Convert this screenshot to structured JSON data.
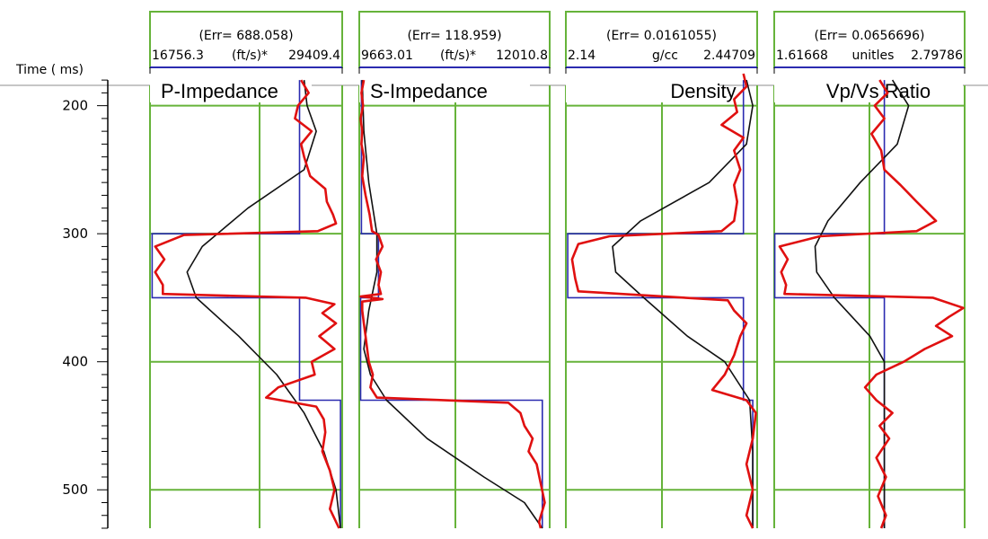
{
  "chart_data": {
    "type": "line",
    "y_axis": {
      "label": "Time ( ms)",
      "range": [
        175,
        530
      ],
      "ticks": [
        200,
        300,
        400,
        500
      ],
      "tick_labels": [
        "200",
        "300",
        "400",
        "500"
      ],
      "inverted": true
    },
    "grid": true,
    "colors": {
      "grid": "#66b33a",
      "model": "#2b2bb0",
      "inverted": "#e01010",
      "initial": "#111111"
    },
    "tracks": [
      {
        "title": "P-Impedance",
        "err": "(Err= 688.058)",
        "range_min": "16756.3",
        "unit": "(ft/s)*",
        "range_max": "29409.4",
        "xlim": [
          16756.3,
          29409.4
        ],
        "model": [
          [
            180,
            26600
          ],
          [
            300,
            26600
          ],
          [
            300,
            16900
          ],
          [
            350,
            16900
          ],
          [
            350,
            26600
          ],
          [
            430,
            26600
          ],
          [
            430,
            29300
          ],
          [
            530,
            29300
          ]
        ],
        "initial": [
          [
            180,
            26900
          ],
          [
            200,
            27100
          ],
          [
            220,
            27700
          ],
          [
            250,
            26900
          ],
          [
            280,
            23200
          ],
          [
            310,
            20200
          ],
          [
            330,
            19200
          ],
          [
            350,
            19800
          ],
          [
            380,
            22600
          ],
          [
            410,
            25100
          ],
          [
            440,
            26900
          ],
          [
            470,
            28200
          ],
          [
            500,
            29000
          ],
          [
            530,
            29300
          ]
        ],
        "inverted": [
          [
            180,
            26700
          ],
          [
            190,
            27200
          ],
          [
            200,
            26500
          ],
          [
            210,
            26300
          ],
          [
            220,
            27400
          ],
          [
            230,
            26700
          ],
          [
            240,
            26900
          ],
          [
            255,
            27300
          ],
          [
            265,
            28300
          ],
          [
            275,
            28400
          ],
          [
            285,
            28800
          ],
          [
            292,
            29000
          ],
          [
            298,
            27800
          ],
          [
            301,
            19000
          ],
          [
            310,
            17100
          ],
          [
            320,
            17700
          ],
          [
            330,
            17100
          ],
          [
            340,
            17600
          ],
          [
            347,
            17600
          ],
          [
            350,
            27000
          ],
          [
            355,
            28900
          ],
          [
            362,
            28100
          ],
          [
            370,
            29000
          ],
          [
            380,
            27900
          ],
          [
            390,
            28900
          ],
          [
            400,
            27400
          ],
          [
            410,
            27600
          ],
          [
            420,
            25200
          ],
          [
            428,
            24400
          ],
          [
            435,
            27700
          ],
          [
            445,
            28200
          ],
          [
            455,
            28300
          ],
          [
            470,
            28100
          ],
          [
            485,
            28600
          ],
          [
            500,
            28900
          ],
          [
            515,
            28600
          ],
          [
            530,
            29200
          ]
        ]
      },
      {
        "title": "S-Impedance",
        "err": "(Err= 118.959)",
        "range_min": "9663.01",
        "unit": "(ft/s)*",
        "range_max": "12010.8",
        "xlim": [
          9663.01,
          12010.8
        ],
        "model": [
          [
            180,
            9690
          ],
          [
            300,
            9690
          ],
          [
            300,
            9900
          ],
          [
            350,
            9900
          ],
          [
            350,
            9680
          ],
          [
            430,
            9680
          ],
          [
            430,
            11920
          ],
          [
            530,
            11920
          ]
        ],
        "initial": [
          [
            180,
            9700
          ],
          [
            220,
            9720
          ],
          [
            260,
            9780
          ],
          [
            300,
            9880
          ],
          [
            330,
            9880
          ],
          [
            360,
            9780
          ],
          [
            390,
            9720
          ],
          [
            410,
            9800
          ],
          [
            430,
            10000
          ],
          [
            460,
            10500
          ],
          [
            490,
            11200
          ],
          [
            510,
            11700
          ],
          [
            530,
            11920
          ]
        ],
        "inverted": [
          [
            180,
            9720
          ],
          [
            190,
            9690
          ],
          [
            200,
            9710
          ],
          [
            210,
            9680
          ],
          [
            220,
            9700
          ],
          [
            230,
            9690
          ],
          [
            240,
            9720
          ],
          [
            255,
            9700
          ],
          [
            270,
            9740
          ],
          [
            285,
            9790
          ],
          [
            298,
            9820
          ],
          [
            301,
            9900
          ],
          [
            310,
            9950
          ],
          [
            320,
            9870
          ],
          [
            330,
            9930
          ],
          [
            340,
            9900
          ],
          [
            347,
            9930
          ],
          [
            349,
            9680
          ],
          [
            351,
            9950
          ],
          [
            353,
            9700
          ],
          [
            360,
            9700
          ],
          [
            370,
            9720
          ],
          [
            380,
            9740
          ],
          [
            390,
            9760
          ],
          [
            400,
            9780
          ],
          [
            410,
            9830
          ],
          [
            420,
            9800
          ],
          [
            428,
            9880
          ],
          [
            432,
            11500
          ],
          [
            440,
            11650
          ],
          [
            450,
            11700
          ],
          [
            460,
            11800
          ],
          [
            470,
            11750
          ],
          [
            480,
            11850
          ],
          [
            495,
            11900
          ],
          [
            510,
            11950
          ],
          [
            525,
            11880
          ],
          [
            530,
            11900
          ]
        ]
      },
      {
        "title": "Density",
        "err": "(Err= 0.0161055)",
        "range_min": "2.14",
        "unit": "g/cc",
        "range_max": "2.44709",
        "xlim": [
          2.14,
          2.44709
        ],
        "model": [
          [
            180,
            2.425
          ],
          [
            300,
            2.425
          ],
          [
            300,
            2.143
          ],
          [
            350,
            2.143
          ],
          [
            350,
            2.425
          ],
          [
            430,
            2.425
          ],
          [
            430,
            2.44
          ],
          [
            530,
            2.44
          ]
        ],
        "initial": [
          [
            180,
            2.43
          ],
          [
            200,
            2.44
          ],
          [
            230,
            2.43
          ],
          [
            260,
            2.37
          ],
          [
            290,
            2.26
          ],
          [
            310,
            2.215
          ],
          [
            330,
            2.22
          ],
          [
            350,
            2.265
          ],
          [
            380,
            2.335
          ],
          [
            400,
            2.395
          ],
          [
            430,
            2.435
          ],
          [
            470,
            2.44
          ],
          [
            530,
            2.44
          ]
        ],
        "inverted": [
          [
            175,
            2.425
          ],
          [
            185,
            2.43
          ],
          [
            195,
            2.41
          ],
          [
            205,
            2.415
          ],
          [
            215,
            2.39
          ],
          [
            225,
            2.425
          ],
          [
            235,
            2.41
          ],
          [
            250,
            2.42
          ],
          [
            262,
            2.41
          ],
          [
            275,
            2.415
          ],
          [
            290,
            2.41
          ],
          [
            298,
            2.39
          ],
          [
            302,
            2.21
          ],
          [
            308,
            2.16
          ],
          [
            320,
            2.15
          ],
          [
            335,
            2.155
          ],
          [
            345,
            2.16
          ],
          [
            352,
            2.4
          ],
          [
            360,
            2.41
          ],
          [
            370,
            2.43
          ],
          [
            380,
            2.42
          ],
          [
            395,
            2.41
          ],
          [
            410,
            2.395
          ],
          [
            422,
            2.375
          ],
          [
            430,
            2.43
          ],
          [
            440,
            2.445
          ],
          [
            460,
            2.44
          ],
          [
            480,
            2.43
          ],
          [
            500,
            2.44
          ],
          [
            520,
            2.43
          ],
          [
            530,
            2.44
          ]
        ]
      },
      {
        "title": "Vp/Vs Ratio",
        "err": "(Err= 0.0656696)",
        "range_min": "1.61668",
        "unit": "unitles",
        "range_max": "2.79786",
        "xlim": [
          1.61668,
          2.79786
        ],
        "model": [
          [
            180,
            2.3
          ],
          [
            300,
            2.3
          ],
          [
            300,
            1.62
          ],
          [
            350,
            1.62
          ],
          [
            350,
            2.3
          ],
          [
            530,
            2.3
          ]
        ],
        "initial": [
          [
            180,
            2.35
          ],
          [
            200,
            2.45
          ],
          [
            230,
            2.38
          ],
          [
            260,
            2.15
          ],
          [
            290,
            1.95
          ],
          [
            310,
            1.87
          ],
          [
            330,
            1.88
          ],
          [
            350,
            1.99
          ],
          [
            380,
            2.21
          ],
          [
            400,
            2.3
          ],
          [
            430,
            2.3
          ],
          [
            530,
            2.3
          ]
        ],
        "inverted": [
          [
            180,
            2.27
          ],
          [
            190,
            2.32
          ],
          [
            200,
            2.24
          ],
          [
            210,
            2.3
          ],
          [
            222,
            2.22
          ],
          [
            235,
            2.28
          ],
          [
            250,
            2.3
          ],
          [
            262,
            2.4
          ],
          [
            275,
            2.5
          ],
          [
            290,
            2.62
          ],
          [
            298,
            2.5
          ],
          [
            302,
            1.9
          ],
          [
            310,
            1.65
          ],
          [
            320,
            1.7
          ],
          [
            330,
            1.66
          ],
          [
            340,
            1.69
          ],
          [
            347,
            1.68
          ],
          [
            350,
            2.6
          ],
          [
            358,
            2.79
          ],
          [
            365,
            2.7
          ],
          [
            372,
            2.62
          ],
          [
            380,
            2.72
          ],
          [
            390,
            2.55
          ],
          [
            400,
            2.42
          ],
          [
            410,
            2.25
          ],
          [
            420,
            2.18
          ],
          [
            430,
            2.25
          ],
          [
            440,
            2.35
          ],
          [
            450,
            2.27
          ],
          [
            460,
            2.33
          ],
          [
            475,
            2.25
          ],
          [
            490,
            2.31
          ],
          [
            505,
            2.26
          ],
          [
            520,
            2.31
          ],
          [
            530,
            2.28
          ]
        ]
      }
    ]
  }
}
